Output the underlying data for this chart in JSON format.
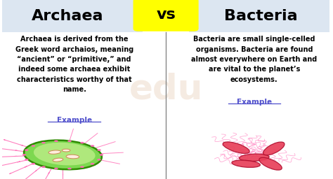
{
  "title_left": "Archaea",
  "title_right": "Bacteria",
  "vs_text": "vs",
  "left_body": "Archaea is derived from the\nGreek word archaios, meaning\n“ancient” or “primitive,” and\nindeed some archaea exhibit\ncharacteristics worthy of that\nname.",
  "right_body": "Bacteria are small single-celled\norganisms. Bacteria are found\nalmost everywhere on Earth and\nare vital to the planet’s\necosystems.",
  "example_text": "Example",
  "bg_color": "#ffffff",
  "header_bg_left": "#dce6f1",
  "header_bg_right": "#dce6f1",
  "vs_bg": "#ffff00",
  "title_color": "#000000",
  "body_color": "#000000",
  "example_color": "#5050cc",
  "divider_color": "#888888",
  "watermark_color": "#e0c0a0",
  "fig_width": 4.74,
  "fig_height": 2.56,
  "dpi": 100
}
